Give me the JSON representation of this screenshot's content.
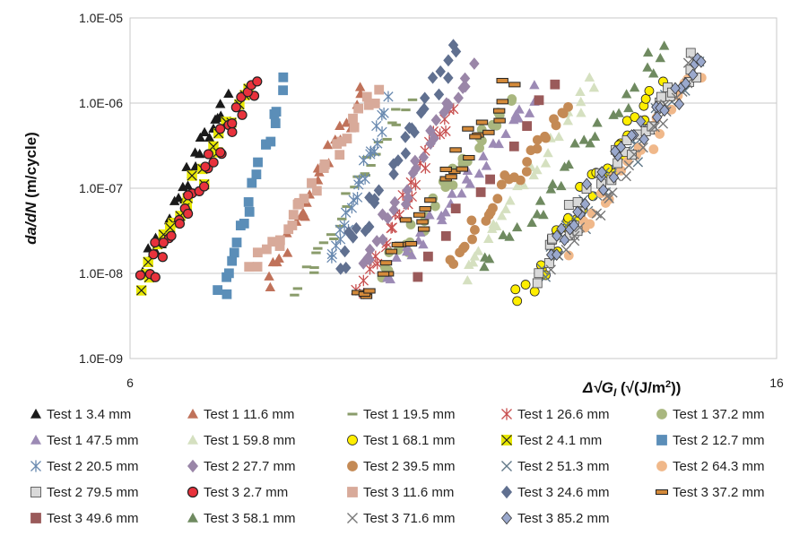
{
  "chart_data": {
    "type": "scatter",
    "title": "",
    "ylabel": "da/dN (m/cycle)",
    "xlabel": "Δ√GI (√(J/m²))",
    "xlim": [
      6,
      16
    ],
    "ylim_log10": [
      -9,
      -5
    ],
    "y_scale": "log",
    "grid": "horizontal",
    "legend_position": "bottom",
    "x_tick_labels": [
      "6",
      "16"
    ],
    "y_tick_labels": [
      "1.0E-09",
      "1.0E-08",
      "1.0E-07",
      "1.0E-06",
      "1.0E-05"
    ],
    "series": [
      {
        "name": "Test 1 3.4 mm",
        "marker": "triangle",
        "color": "#1a1a1a",
        "x_range": [
          6.2,
          7.5
        ],
        "y_range": [
          1e-08,
          1.2e-06
        ],
        "n": 30
      },
      {
        "name": "Test 1 11.6 mm",
        "marker": "triangle",
        "color": "#c0725a",
        "x_range": [
          8.1,
          9.6
        ],
        "y_range": [
          7.5e-09,
          1.3e-06
        ],
        "n": 26
      },
      {
        "name": "Test 1 19.5 mm",
        "marker": "dash",
        "color": "#8a9c6b",
        "x_range": [
          8.6,
          10.3
        ],
        "y_range": [
          7e-09,
          1e-06
        ],
        "n": 28
      },
      {
        "name": "Test 1 26.6 mm",
        "marker": "asterisk",
        "color": "#c85050",
        "x_range": [
          9.5,
          11.0
        ],
        "y_range": [
          5e-09,
          1e-06
        ],
        "n": 28
      },
      {
        "name": "Test 1 37.2 mm",
        "marker": "circle",
        "color": "#a9b77f",
        "x_range": [
          9.9,
          11.9
        ],
        "y_range": [
          1e-08,
          1.1e-06
        ],
        "n": 32
      },
      {
        "name": "Test 1 47.5 mm",
        "marker": "triangle",
        "color": "#9c8ab5",
        "x_range": [
          10.0,
          12.3
        ],
        "y_range": [
          9e-09,
          1.3e-06
        ],
        "n": 32
      },
      {
        "name": "Test 1 59.8 mm",
        "marker": "triangle",
        "color": "#d5e0c0",
        "x_range": [
          11.2,
          13.2
        ],
        "y_range": [
          1e-08,
          2e-06
        ],
        "n": 30
      },
      {
        "name": "Test 1 68.1 mm",
        "marker": "circle",
        "color": "#ffee00",
        "x_range": [
          12.0,
          14.2
        ],
        "y_range": [
          4.6e-09,
          1.6e-06
        ],
        "n": 34
      },
      {
        "name": "Test 2 4.1 mm",
        "marker": "xbox",
        "color": "#e8e800",
        "x_range": [
          6.1,
          7.8
        ],
        "y_range": [
          7e-09,
          1.4e-06
        ],
        "n": 22
      },
      {
        "name": "Test 2 12.7 mm",
        "marker": "square",
        "color": "#5b8eb8",
        "x_range": [
          7.4,
          8.4
        ],
        "y_range": [
          5.4e-09,
          1.7e-06
        ],
        "n": 22
      },
      {
        "name": "Test 2 20.5 mm",
        "marker": "asterisk",
        "color": "#6a8ab0",
        "x_range": [
          9.1,
          10.0
        ],
        "y_range": [
          1.3e-08,
          1e-06
        ],
        "n": 24
      },
      {
        "name": "Test 2 27.7 mm",
        "marker": "diamond",
        "color": "#9a86a8",
        "x_range": [
          9.6,
          11.3
        ],
        "y_range": [
          1.3e-08,
          2.6e-06
        ],
        "n": 30
      },
      {
        "name": "Test 2 39.5 mm",
        "marker": "circle",
        "color": "#c48a55",
        "x_range": [
          10.9,
          12.8
        ],
        "y_range": [
          1.3e-08,
          1e-06
        ],
        "n": 30
      },
      {
        "name": "Test 2 51.3 mm",
        "marker": "x",
        "color": "#607888",
        "x_range": [
          12.4,
          14.7
        ],
        "y_range": [
          1.1e-08,
          2.5e-06
        ],
        "n": 30
      },
      {
        "name": "Test 2 64.3 mm",
        "marker": "circle",
        "color": "#f0b88a",
        "x_range": [
          12.8,
          14.8
        ],
        "y_range": [
          2e-08,
          2.5e-06
        ],
        "n": 26
      },
      {
        "name": "Test 2 79.5 mm",
        "marker": "square",
        "color": "#d9d9d9",
        "x_range": [
          12.2,
          14.8
        ],
        "y_range": [
          1e-08,
          3.5e-06
        ],
        "n": 34
      },
      {
        "name": "Test 3 2.7 mm",
        "marker": "circle",
        "color": "#e8323c",
        "x_range": [
          6.2,
          8.0
        ],
        "y_range": [
          8e-09,
          2.3e-06
        ],
        "n": 34
      },
      {
        "name": "Test 3 11.6 mm",
        "marker": "square",
        "color": "#d8aa9a",
        "x_range": [
          7.9,
          9.8
        ],
        "y_range": [
          1e-08,
          1.5e-06
        ],
        "n": 30
      },
      {
        "name": "Test 3 24.6 mm",
        "marker": "diamond",
        "color": "#607090",
        "x_range": [
          9.2,
          11.1
        ],
        "y_range": [
          1.1e-08,
          4.6e-06
        ],
        "n": 30
      },
      {
        "name": "Test 3 37.2 mm",
        "marker": "hbar",
        "color": "#d48a3a",
        "x_range": [
          9.6,
          11.9
        ],
        "y_range": [
          4.8e-09,
          1.7e-06
        ],
        "n": 34
      },
      {
        "name": "Test 3 49.6 mm",
        "marker": "square",
        "color": "#9a5a5a",
        "x_range": [
          10.4,
          12.6
        ],
        "y_range": [
          1e-08,
          1.5e-06
        ],
        "n": 10
      },
      {
        "name": "Test 3 58.1 mm",
        "marker": "triangle",
        "color": "#6f8a60",
        "x_range": [
          11.5,
          14.3
        ],
        "y_range": [
          1.3e-08,
          4.4e-06
        ],
        "n": 30
      },
      {
        "name": "Test 3 71.6 mm",
        "marker": "x",
        "color": "#777777",
        "x_range": [
          12.6,
          14.8
        ],
        "y_range": [
          1.2e-08,
          3e-06
        ],
        "n": 26
      },
      {
        "name": "Test 3 85.2 mm",
        "marker": "diamond",
        "color": "#9aa8cc",
        "x_range": [
          12.4,
          14.9
        ],
        "y_range": [
          1.7e-08,
          4e-06
        ],
        "n": 34
      }
    ]
  }
}
